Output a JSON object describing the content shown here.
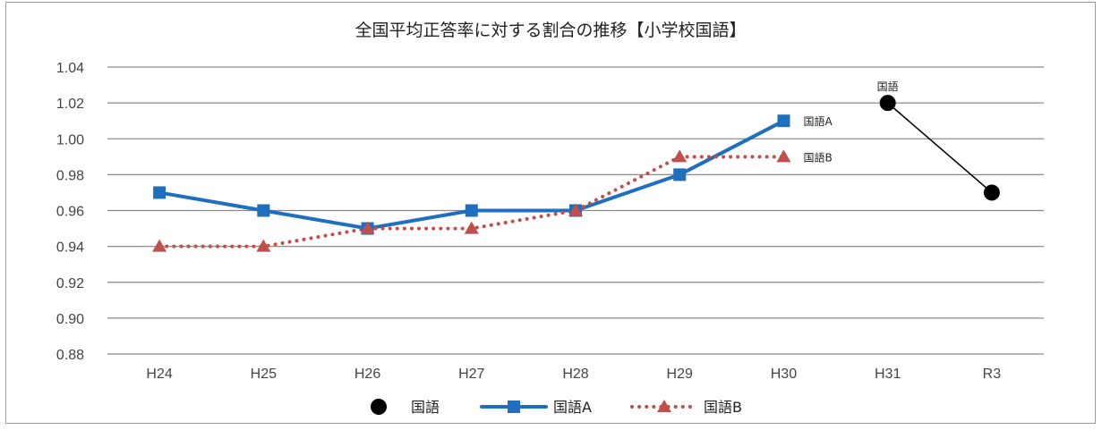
{
  "chart_data": {
    "type": "line",
    "title": "全国平均正答率に対する割合の推移【小学校国語】",
    "categories": [
      "H24",
      "H25",
      "H26",
      "H27",
      "H28",
      "H29",
      "H30",
      "H31",
      "R3"
    ],
    "ylim": [
      0.88,
      1.04
    ],
    "yticks": [
      "1.04",
      "1.02",
      "1.00",
      "0.98",
      "0.96",
      "0.94",
      "0.92",
      "0.90",
      "0.88"
    ],
    "grid": true,
    "legend_position": "bottom",
    "series": [
      {
        "name": "国語",
        "values": [
          null,
          null,
          null,
          null,
          null,
          null,
          null,
          1.02,
          0.97
        ],
        "color": "#000000",
        "marker": "circle",
        "line": "solid",
        "end_label": "国語",
        "end_label_index": 7
      },
      {
        "name": "国語A",
        "values": [
          0.97,
          0.96,
          0.95,
          0.96,
          0.96,
          0.98,
          1.01,
          null,
          null
        ],
        "color": "#1f6fbf",
        "marker": "square",
        "line": "solid",
        "end_label": "国語A",
        "end_label_index": 6
      },
      {
        "name": "国語B",
        "values": [
          0.94,
          0.94,
          0.95,
          0.95,
          0.96,
          0.99,
          0.99,
          null,
          null
        ],
        "color": "#c0504d",
        "marker": "triangle",
        "line": "dotted",
        "end_label": "国語B",
        "end_label_index": 6
      }
    ]
  }
}
